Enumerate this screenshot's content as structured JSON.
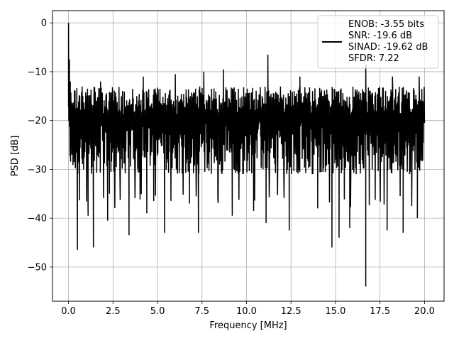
{
  "chart_data": {
    "type": "line",
    "xlabel": "Frequency [MHz]",
    "ylabel": "PSD [dB]",
    "xlim": [
      -0.9,
      21.1
    ],
    "ylim": [
      -57,
      2.5
    ],
    "xticks": [
      0.0,
      2.5,
      5.0,
      7.5,
      10.0,
      12.5,
      15.0,
      17.5,
      20.0
    ],
    "xtick_labels": [
      "0.0",
      "2.5",
      "5.0",
      "7.5",
      "10.0",
      "12.5",
      "15.0",
      "17.5",
      "20.0"
    ],
    "yticks": [
      0,
      -10,
      -20,
      -30,
      -40,
      -50
    ],
    "ytick_labels": [
      "0",
      "−10",
      "−20",
      "−30",
      "−40",
      "−50"
    ],
    "grid": true,
    "legend_position": "top-right",
    "series": [
      {
        "color": "#000000",
        "description": "noise-like PSD trace, dense band mostly between -35 and -13 dB",
        "x_range": [
          0,
          20
        ],
        "n_points": 1200,
        "baseline": -22,
        "band_low": -35,
        "band_high": -13,
        "peak_points": [
          [
            0.0,
            0.0
          ],
          [
            0.05,
            -7.5
          ],
          [
            0.1,
            -12
          ]
        ],
        "dip_points": [
          [
            0.5,
            -46.5
          ],
          [
            1.1,
            -39.5
          ],
          [
            1.4,
            -46
          ],
          [
            2.2,
            -40.5
          ],
          [
            2.3,
            -35
          ],
          [
            3.4,
            -43.5
          ],
          [
            4.4,
            -39
          ],
          [
            5.4,
            -43
          ],
          [
            6.8,
            -37
          ],
          [
            7.3,
            -43
          ],
          [
            9.2,
            -39.5
          ],
          [
            10.4,
            -38.5
          ],
          [
            11.1,
            -41
          ],
          [
            12.4,
            -42.5
          ],
          [
            14.0,
            -38
          ],
          [
            14.8,
            -46
          ],
          [
            15.2,
            -44
          ],
          [
            15.8,
            -42
          ],
          [
            16.7,
            -54
          ],
          [
            17.9,
            -42.5
          ],
          [
            18.8,
            -43
          ],
          [
            19.6,
            -40
          ]
        ],
        "peak_spikes": [
          [
            1.8,
            -12
          ],
          [
            4.2,
            -11
          ],
          [
            6.0,
            -10.5
          ],
          [
            7.6,
            -10
          ],
          [
            8.7,
            -9.5
          ],
          [
            11.2,
            -6.5
          ],
          [
            13.0,
            -11
          ],
          [
            16.7,
            -8.5
          ],
          [
            18.2,
            -11
          ],
          [
            19.7,
            -11
          ]
        ]
      }
    ],
    "legend": {
      "lines": [
        "ENOB: -3.55 bits",
        "SNR: -19.6 dB",
        "SINAD: -19.62 dB",
        "SFDR: 7.22"
      ]
    }
  }
}
